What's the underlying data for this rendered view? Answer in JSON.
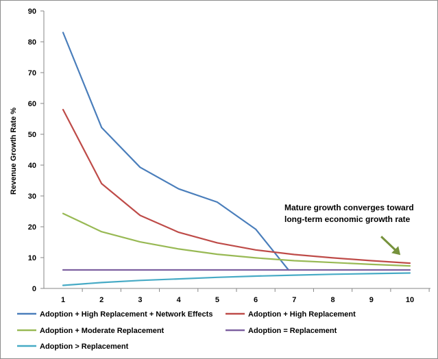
{
  "chart_data": {
    "type": "line",
    "title": "",
    "xlabel": "",
    "ylabel": "Revenue Growth Rate  %",
    "x": [
      1,
      2,
      3,
      4,
      5,
      6,
      7,
      8,
      9,
      10
    ],
    "xlim": [
      1,
      10
    ],
    "ylim": [
      0,
      90
    ],
    "yticks": [
      0,
      10,
      20,
      30,
      40,
      50,
      60,
      70,
      80,
      90
    ],
    "grid": false,
    "legend_position": "bottom",
    "series": [
      {
        "name": "Adoption + High Replacement + Network Effects",
        "color": "#4a7ebb",
        "x": [
          1,
          2,
          3,
          4,
          5,
          6,
          6.85
        ],
        "values": [
          83,
          52.2,
          39.3,
          32.3,
          28,
          19.2,
          6
        ]
      },
      {
        "name": "Adoption + High Replacement",
        "color": "#be4b48",
        "x": [
          1,
          2,
          3,
          4,
          5,
          6,
          7,
          8,
          9,
          10
        ],
        "values": [
          58,
          34,
          23.7,
          18.2,
          14.8,
          12.5,
          11,
          9.9,
          9,
          8.2
        ]
      },
      {
        "name": "Adoption + Moderate Replacement",
        "color": "#98b954",
        "x": [
          1,
          2,
          3,
          4,
          5,
          6,
          7,
          8,
          9,
          10
        ],
        "values": [
          24.3,
          18.4,
          15.1,
          12.8,
          11.1,
          9.9,
          9,
          8.4,
          7.8,
          7.3
        ]
      },
      {
        "name": "Adoption = Replacement",
        "color": "#7d60a0",
        "x": [
          1,
          2,
          3,
          4,
          5,
          6,
          7,
          8,
          9,
          10
        ],
        "values": [
          6,
          6,
          6,
          6,
          6,
          6,
          6,
          6,
          6,
          6
        ]
      },
      {
        "name": "Adoption > Replacement",
        "color": "#46aac5",
        "x": [
          1,
          2,
          3,
          4,
          5,
          6,
          7,
          8,
          9,
          10
        ],
        "values": [
          1,
          1.9,
          2.6,
          3.1,
          3.6,
          4,
          4.3,
          4.6,
          4.8,
          5
        ]
      }
    ],
    "annotations": [
      {
        "lines": [
          "Mature growth converges toward",
          "long-term economic growth rate"
        ],
        "arrow_color": "#76923c",
        "target": {
          "x": 9.7,
          "y": 11.5
        }
      }
    ]
  }
}
